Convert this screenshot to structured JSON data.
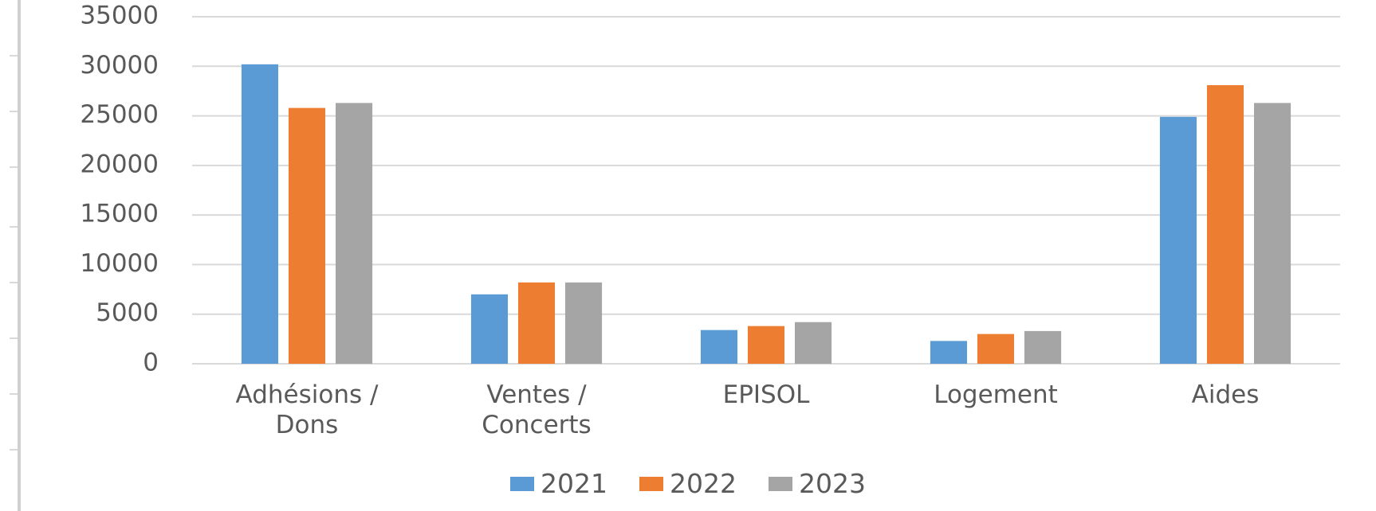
{
  "chart_data": {
    "type": "bar",
    "categories": [
      "Adhésions / Dons",
      "Ventes / Concerts",
      "EPISOL",
      "Logement",
      "Aides"
    ],
    "series": [
      {
        "name": "2021",
        "color": "#5b9bd5",
        "values": [
          30200,
          7000,
          3400,
          2300,
          24900
        ]
      },
      {
        "name": "2022",
        "color": "#ed7d31",
        "values": [
          25800,
          8200,
          3800,
          3000,
          28100
        ]
      },
      {
        "name": "2023",
        "color": "#a5a5a5",
        "values": [
          26300,
          8200,
          4200,
          3300,
          26300
        ]
      }
    ],
    "ylim": [
      0,
      35000
    ],
    "yticks": [
      0,
      5000,
      10000,
      15000,
      20000,
      25000,
      30000,
      35000
    ],
    "grid": true,
    "legend": "bottom"
  }
}
